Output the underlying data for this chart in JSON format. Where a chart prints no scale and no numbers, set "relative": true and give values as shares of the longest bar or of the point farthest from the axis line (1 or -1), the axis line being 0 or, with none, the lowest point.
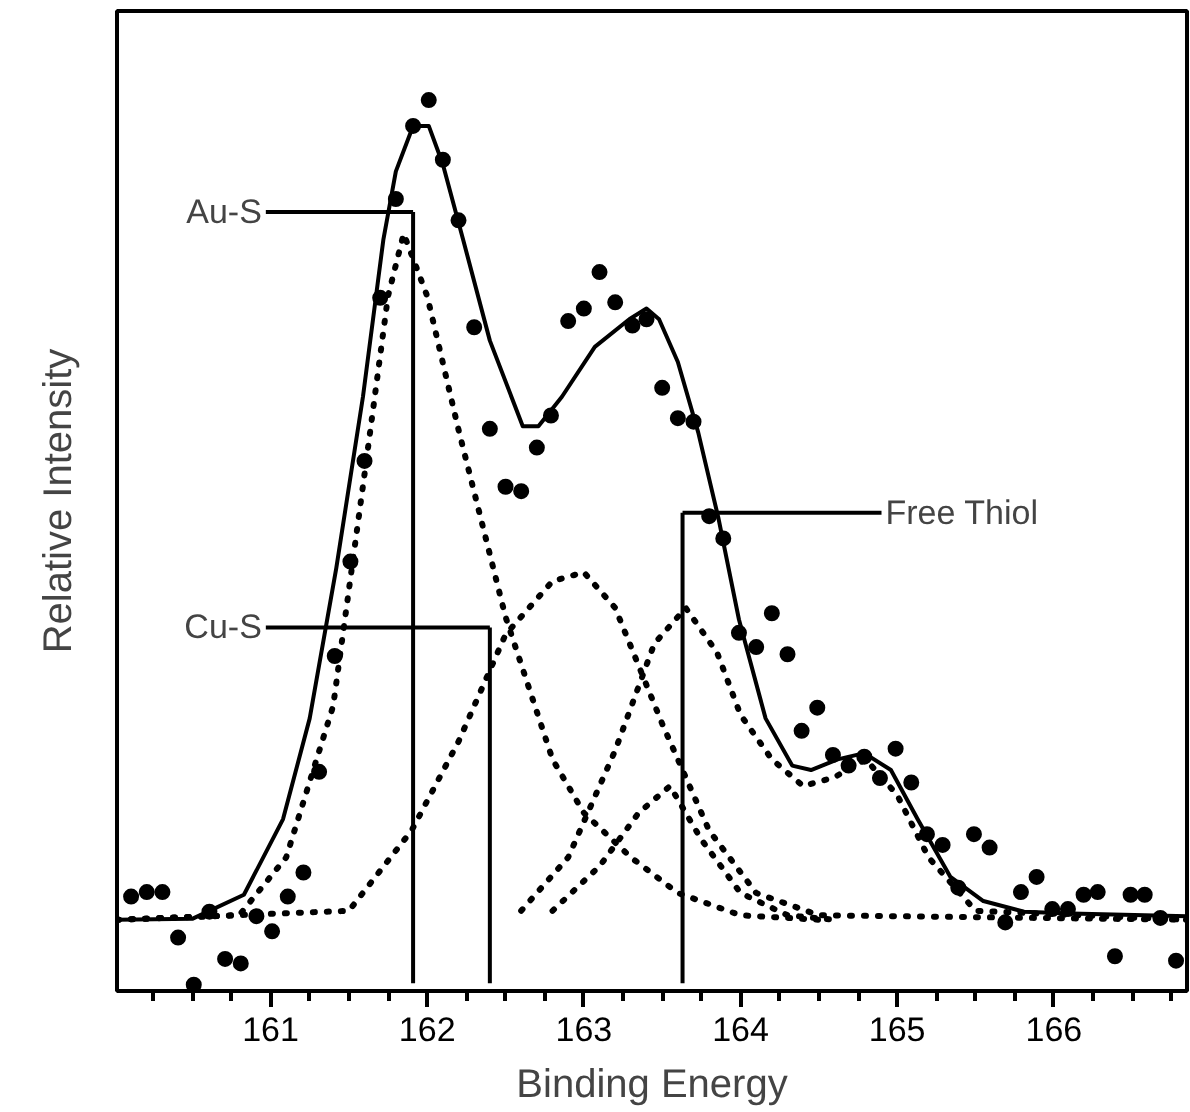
{
  "chart_data": {
    "type": "scatter",
    "relative": true,
    "xlabel": "Binding Energy",
    "ylabel": "Relative Intensity",
    "xlim": [
      160.02,
      166.85
    ],
    "xticks": [
      {
        "value": 160.25,
        "label": null
      },
      {
        "value": 160.5,
        "label": null
      },
      {
        "value": 160.75,
        "label": null
      },
      161,
      {
        "value": 161.25,
        "label": null
      },
      {
        "value": 161.5,
        "label": null
      },
      {
        "value": 161.75,
        "label": null
      },
      162,
      {
        "value": 162.25,
        "label": null
      },
      {
        "value": 162.5,
        "label": null
      },
      {
        "value": 162.75,
        "label": null
      },
      163,
      {
        "value": 163.25,
        "label": null
      },
      {
        "value": 163.5,
        "label": null
      },
      {
        "value": 163.75,
        "label": null
      },
      164,
      {
        "value": 164.25,
        "label": null
      },
      {
        "value": 164.5,
        "label": null
      },
      {
        "value": 164.75,
        "label": null
      },
      165,
      {
        "value": 165.25,
        "label": null
      },
      {
        "value": 165.5,
        "label": null
      },
      {
        "value": 165.75,
        "label": null
      },
      166,
      {
        "value": 166.25,
        "label": null
      },
      {
        "value": 166.5,
        "label": null
      },
      {
        "value": 166.75,
        "label": null
      }
    ],
    "tick_labels": "x",
    "grid": false,
    "series": [
      {
        "marker": "circle",
        "color": "#000000",
        "x": [
          160.11,
          160.21,
          160.31,
          160.41,
          160.51,
          160.61,
          160.71,
          160.81,
          160.91,
          161.01,
          161.11,
          161.21,
          161.31,
          161.41,
          161.51,
          161.6,
          161.7,
          161.8,
          161.91,
          162.01,
          162.1,
          162.2,
          162.3,
          162.4,
          162.5,
          162.6,
          162.7,
          162.79,
          162.9,
          163.0,
          163.1,
          163.2,
          163.31,
          163.4,
          163.5,
          163.6,
          163.7,
          163.8,
          163.89,
          163.99,
          164.1,
          164.2,
          164.3,
          164.39,
          164.49,
          164.59,
          164.69,
          164.79,
          164.89,
          164.99,
          165.09,
          165.19,
          165.29,
          165.39,
          165.49,
          165.59,
          165.69,
          165.79,
          165.89,
          165.99,
          166.09,
          166.19,
          166.28,
          166.39,
          166.49,
          166.58,
          166.68,
          166.78
        ],
        "values": [
          0.106,
          0.111,
          0.111,
          0.06,
          0.007,
          0.089,
          0.036,
          0.031,
          0.084,
          0.067,
          0.106,
          0.133,
          0.246,
          0.376,
          0.482,
          0.595,
          0.778,
          0.889,
          0.971,
          1.0,
          0.933,
          0.865,
          0.745,
          0.631,
          0.566,
          0.561,
          0.61,
          0.646,
          0.752,
          0.766,
          0.807,
          0.773,
          0.747,
          0.754,
          0.677,
          0.643,
          0.639,
          0.533,
          0.508,
          0.402,
          0.386,
          0.424,
          0.378,
          0.292,
          0.318,
          0.265,
          0.253,
          0.263,
          0.239,
          0.272,
          0.234,
          0.176,
          0.164,
          0.116,
          0.176,
          0.161,
          0.077,
          0.111,
          0.128,
          0.092,
          0.092,
          0.108,
          0.111,
          0.039,
          0.108,
          0.108,
          0.082,
          0.034
        ]
      },
      {
        "type": "line",
        "line_style": "solid",
        "marker": "none",
        "color": "#000000",
        "x": [
          160.02,
          160.5,
          160.83,
          161.08,
          161.25,
          161.42,
          161.59,
          161.72,
          161.8,
          161.91,
          162.01,
          162.1,
          162.23,
          162.4,
          162.61,
          162.71,
          162.86,
          163.07,
          163.29,
          163.4,
          163.48,
          163.6,
          163.73,
          163.86,
          163.99,
          164.16,
          164.33,
          164.45,
          164.62,
          164.79,
          164.96,
          165.13,
          165.34,
          165.55,
          165.81,
          166.11,
          166.85
        ],
        "values": [
          0.08,
          0.081,
          0.108,
          0.193,
          0.306,
          0.475,
          0.667,
          0.843,
          0.92,
          0.971,
          0.971,
          0.928,
          0.843,
          0.73,
          0.634,
          0.634,
          0.667,
          0.723,
          0.754,
          0.766,
          0.754,
          0.706,
          0.627,
          0.53,
          0.417,
          0.306,
          0.253,
          0.248,
          0.26,
          0.267,
          0.248,
          0.193,
          0.128,
          0.101,
          0.089,
          0.087,
          0.084
        ]
      },
      {
        "type": "line",
        "line_style": "dotted",
        "marker": "none",
        "color": "#000000",
        "x": [
          160.02,
          160.8,
          161.1,
          161.4,
          161.6,
          161.75,
          161.85,
          162.0,
          162.2,
          162.5,
          162.8,
          163.0,
          163.3,
          163.6,
          164.0,
          164.5
        ],
        "values": [
          0.08,
          0.085,
          0.15,
          0.32,
          0.58,
          0.78,
          0.85,
          0.78,
          0.63,
          0.42,
          0.26,
          0.2,
          0.15,
          0.11,
          0.085,
          0.08
        ]
      },
      {
        "type": "line",
        "line_style": "dotted",
        "marker": "none",
        "color": "#000000",
        "x": [
          160.02,
          161.5,
          161.9,
          162.2,
          162.5,
          162.8,
          163.0,
          163.2,
          163.5,
          163.8,
          164.1,
          164.5,
          166.85
        ],
        "values": [
          0.08,
          0.09,
          0.18,
          0.28,
          0.4,
          0.46,
          0.47,
          0.43,
          0.3,
          0.18,
          0.11,
          0.085,
          0.08
        ]
      },
      {
        "type": "line",
        "line_style": "dotted",
        "marker": "none",
        "color": "#000000",
        "x": [
          162.6,
          162.9,
          163.2,
          163.45,
          163.65,
          163.85,
          164.0,
          164.2,
          164.4,
          164.6,
          164.8,
          165.0,
          165.2,
          165.5,
          166.85
        ],
        "values": [
          0.09,
          0.15,
          0.27,
          0.39,
          0.43,
          0.38,
          0.31,
          0.26,
          0.23,
          0.24,
          0.26,
          0.22,
          0.15,
          0.09,
          0.08
        ]
      },
      {
        "type": "line",
        "line_style": "dotted",
        "marker": "none",
        "color": "#000000",
        "x": [
          162.8,
          163.1,
          163.35,
          163.55,
          163.75,
          164.0,
          164.3,
          164.6
        ],
        "values": [
          0.09,
          0.14,
          0.2,
          0.23,
          0.17,
          0.11,
          0.085,
          0.08
        ]
      }
    ],
    "ref_lines": [
      {
        "axis": "x",
        "value": 161.91,
        "label": "Au-S",
        "line_style": "solid",
        "color": "#000000"
      },
      {
        "axis": "x",
        "value": 162.4,
        "label": "Cu-S",
        "line_style": "solid",
        "color": "#000000"
      },
      {
        "axis": "x",
        "value": 163.63,
        "label": "Free Thiol",
        "line_style": "solid",
        "color": "#000000"
      }
    ]
  }
}
